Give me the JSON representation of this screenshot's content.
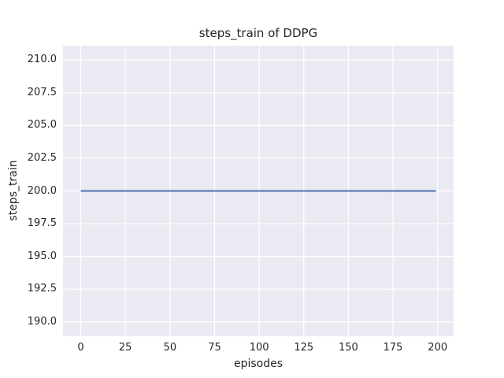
{
  "chart_data": {
    "type": "line",
    "title": "steps_train of DDPG",
    "xlabel": "episodes",
    "ylabel": "steps_train",
    "x_ticks": [
      0,
      25,
      50,
      75,
      100,
      125,
      150,
      175,
      200
    ],
    "y_ticks": [
      190.0,
      192.5,
      195.0,
      197.5,
      200.0,
      202.5,
      205.0,
      207.5,
      210.0
    ],
    "xlim": [
      -9.95,
      208.95
    ],
    "ylim": [
      188.9,
      211.1
    ],
    "grid": true,
    "legend": "none",
    "series": [
      {
        "name": "steps_train",
        "x_start": 0,
        "x_end": 199,
        "y_value": 200.0,
        "note": "constant value 200 for every episode from 0 to 199",
        "color": "#4c72b0",
        "linewidth": 2
      }
    ],
    "colors": {
      "plot_background": "#eaeaf2",
      "gridline": "#ffffff",
      "text": "#262626",
      "figure_background": "#ffffff"
    }
  }
}
